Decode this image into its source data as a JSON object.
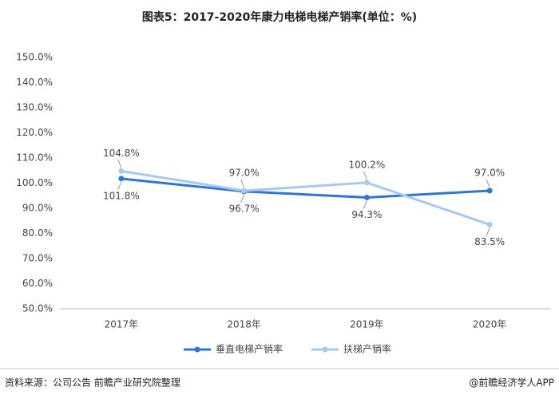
{
  "chart_data": {
    "type": "line",
    "title": "图表5：2017-2020年康力电梯电梯产销率(单位：%)",
    "categories": [
      "2017年",
      "2018年",
      "2019年",
      "2020年"
    ],
    "series": [
      {
        "name": "垂直电梯产销率",
        "color": "#2e75d6",
        "values": [
          101.8,
          96.7,
          94.3,
          97.0
        ],
        "value_labels": [
          "101.8%",
          "96.7%",
          "94.3%",
          "97.0%"
        ]
      },
      {
        "name": "扶梯产销率",
        "color": "#a9c8f0",
        "values": [
          104.8,
          97.0,
          100.2,
          83.5
        ],
        "value_labels": [
          "104.8%",
          "97.0%",
          "100.2%",
          "83.5%"
        ]
      }
    ],
    "ylim": [
      50,
      150
    ],
    "yticks": [
      {
        "value": 50,
        "label": "50.0%"
      },
      {
        "value": 60,
        "label": "60.0%"
      },
      {
        "value": 70,
        "label": "70.0%"
      },
      {
        "value": 80,
        "label": "80.0%"
      },
      {
        "value": 90,
        "label": "90.0%"
      },
      {
        "value": 100,
        "label": "100.0%"
      },
      {
        "value": 110,
        "label": "110.0%"
      },
      {
        "value": 120,
        "label": "120.0%"
      },
      {
        "value": 130,
        "label": "130.0%"
      },
      {
        "value": 140,
        "label": "140.0%"
      },
      {
        "value": 150,
        "label": "150.0%"
      }
    ],
    "grid": false,
    "legend": "bottom",
    "source": "资料来源：公司公告 前瞻产业研究院整理",
    "credit": "@前瞻经济学人APP"
  }
}
